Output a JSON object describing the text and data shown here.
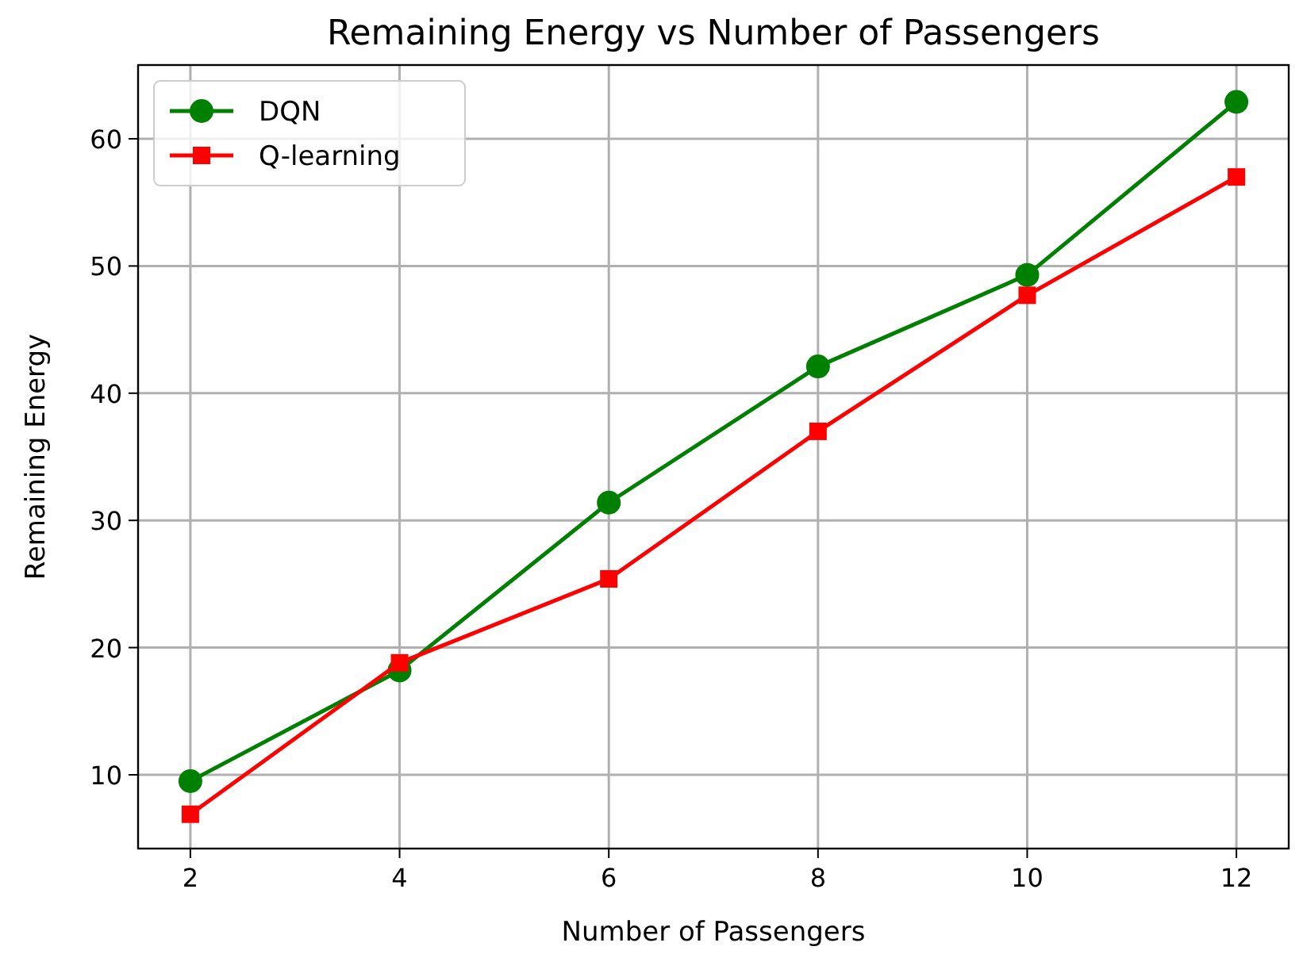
{
  "chart_data": {
    "type": "line",
    "title": "Remaining Energy vs Number of Passengers",
    "xlabel": "Number of Passengers",
    "ylabel": "Remaining Energy",
    "x": [
      2,
      4,
      6,
      8,
      10,
      12
    ],
    "series": [
      {
        "name": "DQN",
        "color": "#008000",
        "marker": "circle",
        "values": [
          9.5,
          18.2,
          31.4,
          42.1,
          49.3,
          62.9
        ]
      },
      {
        "name": "Q-learning",
        "color": "#ff0000",
        "marker": "square",
        "values": [
          6.9,
          18.8,
          25.4,
          37.0,
          47.7,
          57.0
        ]
      }
    ],
    "xlim": [
      1.5,
      12.5
    ],
    "xticks": [
      2,
      4,
      6,
      8,
      10,
      12
    ],
    "ylim": [
      4.2,
      65.8
    ],
    "yticks": [
      10,
      20,
      30,
      40,
      50,
      60
    ],
    "grid": true,
    "legend": "top left",
    "line_style": "solid"
  }
}
